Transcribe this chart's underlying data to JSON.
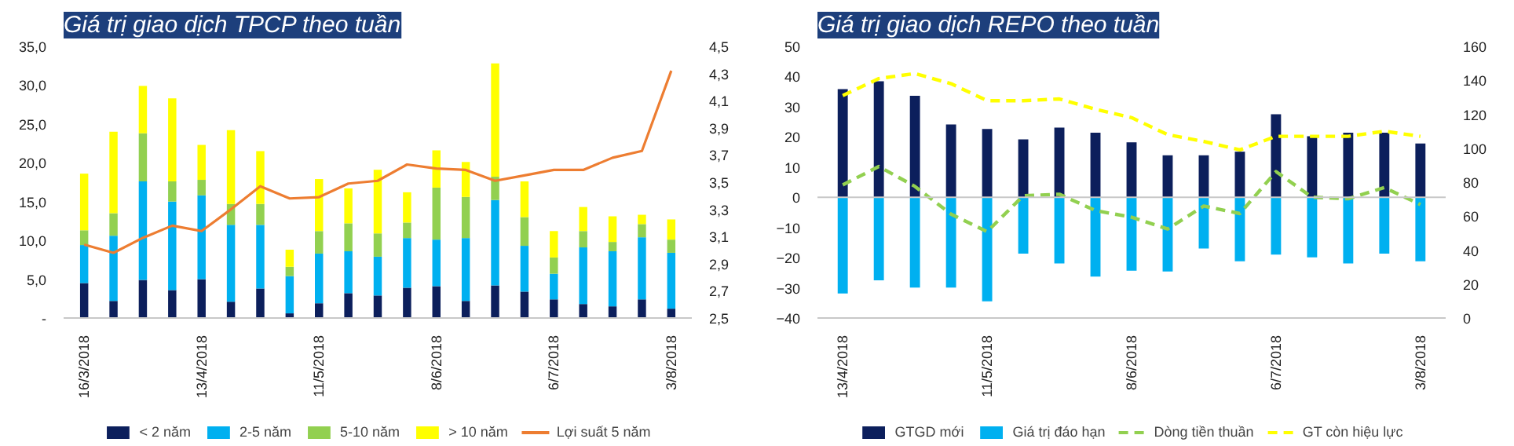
{
  "chart_data": [
    {
      "type": "bar",
      "title": "Giá trị giao dịch TPCP theo tuần",
      "stacked": true,
      "legend": "bottom",
      "grid": false,
      "marker": "none",
      "categories": [
        "16/3/2018",
        null,
        null,
        null,
        "13/4/2018",
        null,
        null,
        null,
        "11/5/2018",
        null,
        null,
        null,
        "8/6/2018",
        null,
        null,
        null,
        "6/7/2018",
        null,
        null,
        null,
        "3/8/2018"
      ],
      "ylim": [
        0,
        35
      ],
      "yticks": [
        {
          "value": 0,
          "label": "-"
        },
        {
          "value": 5,
          "label": "5,0"
        },
        {
          "value": 10,
          "label": "10,0"
        },
        {
          "value": 15,
          "label": "15,0"
        },
        {
          "value": 20,
          "label": "20,0"
        },
        {
          "value": 25,
          "label": "25,0"
        },
        {
          "value": 30,
          "label": "30,0"
        },
        {
          "value": 35,
          "label": "35,0"
        }
      ],
      "y2lim": [
        2.5,
        4.5
      ],
      "y2ticks": [
        {
          "value": 2.5,
          "label": "2,5"
        },
        {
          "value": 2.7,
          "label": "2,7"
        },
        {
          "value": 2.9,
          "label": "2,9"
        },
        {
          "value": 3.1,
          "label": "3,1"
        },
        {
          "value": 3.3,
          "label": "3,3"
        },
        {
          "value": 3.5,
          "label": "3,5"
        },
        {
          "value": 3.7,
          "label": "3,7"
        },
        {
          "value": 3.9,
          "label": "3,9"
        },
        {
          "value": 4.1,
          "label": "4,1"
        },
        {
          "value": 4.3,
          "label": "4,3"
        },
        {
          "value": 4.5,
          "label": "4,5"
        }
      ],
      "series": [
        {
          "name": "< 2 năm",
          "type": "bar",
          "color": "#0c1f5c",
          "values": [
            4.5,
            2.2,
            4.9,
            3.6,
            5.0,
            2.1,
            3.8,
            0.6,
            1.9,
            3.2,
            2.9,
            3.9,
            4.1,
            2.2,
            4.2,
            3.4,
            2.4,
            1.8,
            1.5,
            2.4,
            1.2
          ]
        },
        {
          "name": "2-5 năm",
          "type": "bar",
          "color": "#00b0f0",
          "values": [
            4.9,
            8.4,
            12.7,
            11.4,
            10.8,
            9.9,
            8.2,
            4.8,
            6.4,
            5.4,
            5.0,
            6.4,
            6.0,
            8.1,
            11.0,
            5.9,
            3.3,
            7.3,
            7.1,
            8.0,
            7.2
          ]
        },
        {
          "name": "5-10 năm",
          "type": "bar",
          "color": "#92d050",
          "values": [
            1.9,
            2.9,
            6.2,
            2.6,
            2.0,
            2.7,
            2.7,
            1.2,
            2.9,
            3.6,
            3.0,
            2.0,
            6.7,
            5.3,
            3.0,
            3.7,
            2.1,
            2.1,
            1.2,
            1.7,
            1.7
          ]
        },
        {
          "name": "> 10 năm",
          "type": "bar",
          "color": "#ffff00",
          "values": [
            7.3,
            10.5,
            6.1,
            10.7,
            4.5,
            9.5,
            6.8,
            2.2,
            6.7,
            4.5,
            8.2,
            3.9,
            4.8,
            4.5,
            14.6,
            4.6,
            3.4,
            3.1,
            3.3,
            1.2,
            2.6
          ]
        },
        {
          "name": "Lợi suất 5 năm",
          "type": "line",
          "axis": "y2",
          "color": "#ed7d31",
          "line_style": "solid",
          "values": [
            3.04,
            2.98,
            3.09,
            3.18,
            3.14,
            3.3,
            3.47,
            3.38,
            3.39,
            3.49,
            3.51,
            3.63,
            3.6,
            3.59,
            3.51,
            3.55,
            3.59,
            3.59,
            3.68,
            3.73,
            4.32
          ]
        }
      ]
    },
    {
      "type": "bar",
      "title": "Giá trị giao dịch REPO theo tuần",
      "stacked": true,
      "legend": "bottom",
      "grid": false,
      "marker": "none",
      "categories": [
        "13/4/2018",
        null,
        null,
        null,
        "11/5/2018",
        null,
        null,
        null,
        "8/6/2018",
        null,
        null,
        null,
        "6/7/2018",
        null,
        null,
        null,
        "3/8/2018"
      ],
      "ylim": [
        -40,
        50
      ],
      "yticks": [
        -40,
        -30,
        -20,
        -10,
        0,
        10,
        20,
        30,
        40,
        50
      ],
      "y2lim": [
        0,
        160
      ],
      "y2ticks": [
        0,
        20,
        40,
        60,
        80,
        100,
        120,
        140,
        160
      ],
      "ref_lines": [
        {
          "axis": "y",
          "value": 0,
          "color": "#c8c8c8"
        }
      ],
      "series": [
        {
          "name": "GTGD mới",
          "type": "bar",
          "color": "#0c1f5c",
          "values": [
            35.8,
            38.4,
            33.6,
            24.1,
            22.6,
            19.2,
            23.1,
            21.4,
            18.2,
            13.9,
            13.9,
            15.1,
            27.5,
            20.2,
            21.4,
            21.4,
            17.8
          ]
        },
        {
          "name": "Giá trị đáo hạn",
          "type": "bar",
          "color": "#00b0f0",
          "values": [
            -31.9,
            -27.5,
            -29.9,
            -29.9,
            -34.5,
            -18.7,
            -21.9,
            -26.3,
            -24.3,
            -24.6,
            -17.0,
            -21.2,
            -19.0,
            -19.9,
            -21.9,
            -18.7,
            -21.2
          ]
        },
        {
          "name": "Dòng tiền thuần",
          "type": "line",
          "color": "#92d050",
          "line_style": "dashed",
          "values": [
            4.1,
            10.2,
            3.6,
            -5.6,
            -11.4,
            0.5,
            1.0,
            -4.4,
            -6.6,
            -10.5,
            -2.9,
            -5.4,
            8.5,
            0.0,
            -0.5,
            3.2,
            -2.4
          ]
        },
        {
          "name": "GT còn hiệu lực",
          "type": "line",
          "axis": "y2",
          "color": "#ffff00",
          "line_style": "dashed",
          "values": [
            131,
            141,
            144,
            138,
            128,
            128,
            129,
            123,
            118,
            108,
            104,
            99,
            107,
            107,
            107,
            110,
            107
          ]
        }
      ]
    }
  ]
}
